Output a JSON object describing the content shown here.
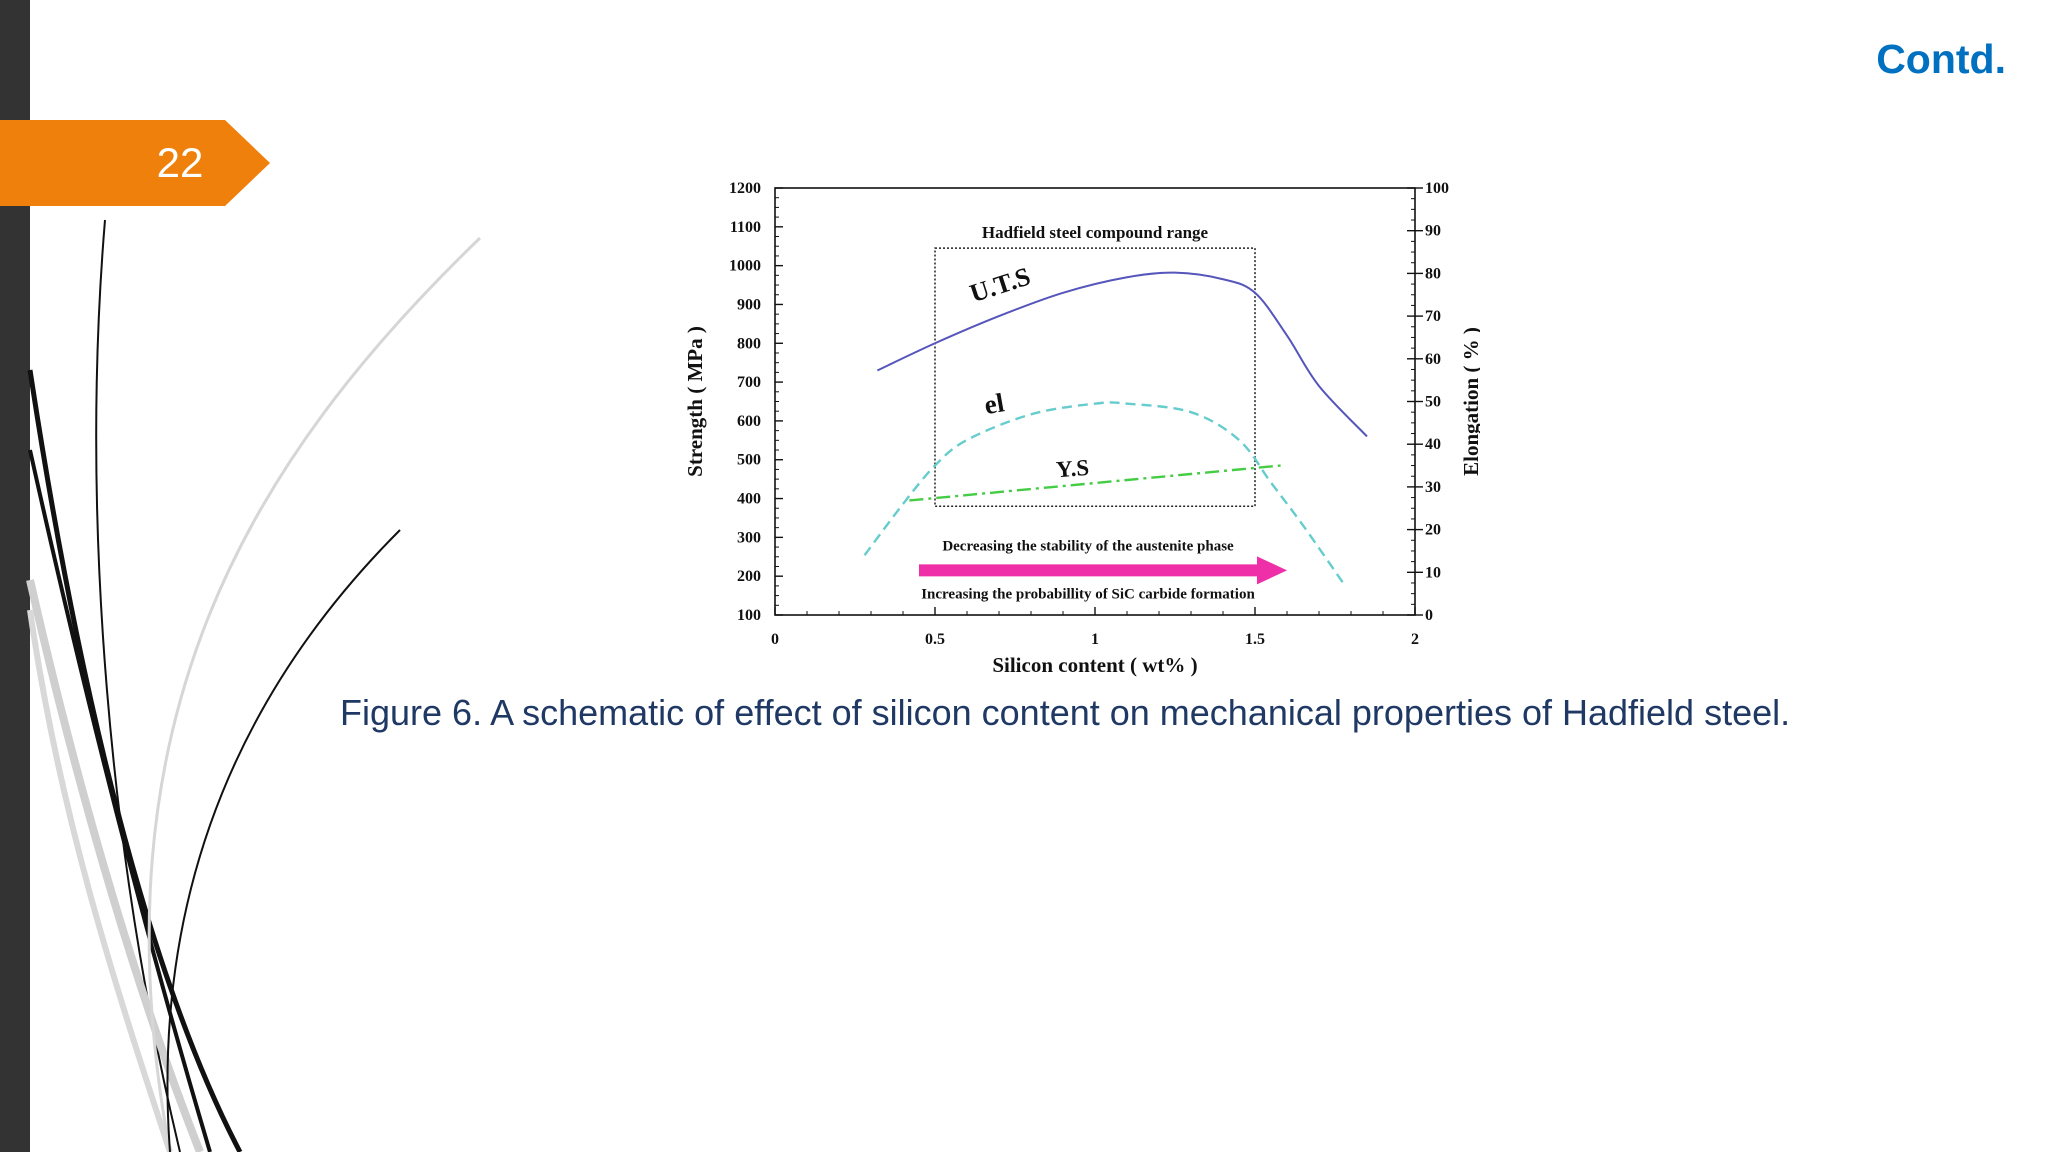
{
  "slide": {
    "number": "22",
    "header": "Contd."
  },
  "caption": "Figure 6. A schematic of effect of silicon content on mechanical properties of Hadfield steel.",
  "colors": {
    "accent_orange": "#f0800c",
    "header_blue": "#0070c0",
    "caption_navy": "#1f3864",
    "uts_line": "#5555bb",
    "el_line": "#66cccc",
    "ys_line": "#44cc44",
    "arrow": "#ee2fa7"
  },
  "chart_data": {
    "type": "line",
    "xlabel": "Silicon content ( wt% )",
    "ylabel": "Strength ( MPa )",
    "ylabel_right": "Elongation ( % )",
    "xlim": [
      0,
      2
    ],
    "ylim": [
      100,
      1200
    ],
    "ylim_right": [
      0,
      100
    ],
    "x_ticks": [
      "0",
      "0.5",
      "1",
      "1.5",
      "2"
    ],
    "x_tick_values": [
      0,
      0.5,
      1,
      1.5,
      2
    ],
    "y_ticks": [
      100,
      200,
      300,
      400,
      500,
      600,
      700,
      800,
      900,
      1000,
      1100,
      1200
    ],
    "y_ticks_right": [
      0,
      10,
      20,
      30,
      40,
      50,
      60,
      70,
      80,
      90,
      100
    ],
    "series": [
      {
        "name": "U.T.S",
        "axis": "left",
        "color": "#5555bb",
        "dash": "solid",
        "x": [
          0.32,
          0.5,
          0.7,
          0.9,
          1.1,
          1.25,
          1.4,
          1.5,
          1.6,
          1.7,
          1.85
        ],
        "y": [
          730,
          800,
          870,
          930,
          970,
          982,
          965,
          930,
          820,
          690,
          560
        ]
      },
      {
        "name": "el",
        "axis": "right",
        "color": "#66cccc",
        "dash": "dashed",
        "x": [
          0.28,
          0.4,
          0.5,
          0.6,
          0.8,
          1.0,
          1.1,
          1.3,
          1.45,
          1.55,
          1.65,
          1.78
        ],
        "y": [
          14,
          26,
          35,
          41,
          47,
          49.5,
          49.5,
          47.5,
          41,
          31,
          21,
          7
        ]
      },
      {
        "name": "Y.S",
        "axis": "left",
        "color": "#44cc44",
        "dash": "dashdot",
        "x": [
          0.42,
          1.58
        ],
        "y": [
          395,
          485
        ]
      }
    ],
    "annotations": {
      "box_label": "Hadfield steel compound range",
      "box_x": [
        0.5,
        1.5
      ],
      "box_y": [
        380,
        1045
      ],
      "arrow_top_text": "Decreasing the stability of the austenite phase",
      "arrow_bottom_text": "Increasing the probabillity of SiC carbide formation",
      "arrow_x": [
        0.45,
        1.6
      ],
      "arrow_y": 215
    }
  }
}
